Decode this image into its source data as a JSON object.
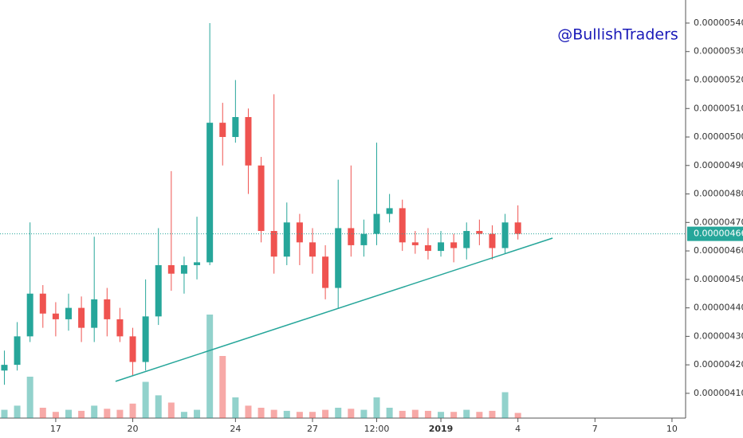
{
  "chart_data": {
    "type": "candlestick",
    "watermark": "@BullishTraders",
    "up_color": "#26a69a",
    "down_color": "#ef5350",
    "xlim": [
      14.83,
      41.53
    ],
    "xticks": [
      17,
      20,
      24,
      27,
      {
        "value": 29.5,
        "label": "12:00"
      },
      {
        "value": 32,
        "label": "2019"
      },
      {
        "value": 35,
        "label": "4"
      },
      {
        "value": 38,
        "label": "7"
      },
      {
        "value": 41,
        "label": "10"
      }
    ],
    "ylim": [
      4.013e-06,
      5.481e-06
    ],
    "yticks": [
      {
        "value": 4.1e-06,
        "label": "0.00000410"
      },
      {
        "value": 4.2e-06,
        "label": "0.00000420"
      },
      {
        "value": 4.3e-06,
        "label": "0.00000430"
      },
      {
        "value": 4.4e-06,
        "label": "0.00000440"
      },
      {
        "value": 4.5e-06,
        "label": "0.00000450"
      },
      {
        "value": 4.6e-06,
        "label": "0.00000460"
      },
      {
        "value": 4.7e-06,
        "label": "0.00000470"
      },
      {
        "value": 4.8e-06,
        "label": "0.00000480"
      },
      {
        "value": 4.9e-06,
        "label": "0.00000490"
      },
      {
        "value": 5e-06,
        "label": "0.00000500"
      },
      {
        "value": 5.1e-06,
        "label": "0.00000510"
      },
      {
        "value": 5.2e-06,
        "label": "0.00000520"
      },
      {
        "value": 5.3e-06,
        "label": "0.00000530"
      },
      {
        "value": 5.4e-06,
        "label": "0.00000540"
      }
    ],
    "last_price": {
      "value": 4.66e-06,
      "label": "0.00000466"
    },
    "trendline": {
      "x": [
        19.33,
        36.35
      ],
      "y": [
        4.142e-06,
        4.645e-06
      ]
    },
    "candles": {
      "x": [
        15,
        15.5,
        16,
        16.5,
        17,
        17.5,
        18,
        18.5,
        19,
        19.5,
        20,
        20.5,
        21,
        21.5,
        22,
        22.5,
        23,
        23.5,
        24,
        24.5,
        25,
        25.5,
        26,
        26.5,
        27,
        27.5,
        28,
        28.5,
        29,
        29.5,
        30,
        30.5,
        31,
        31.5,
        32,
        32.5,
        33,
        33.5,
        34,
        34.5,
        35
      ],
      "open": [
        4.18e-06,
        4.2e-06,
        4.3e-06,
        4.45e-06,
        4.38e-06,
        4.36e-06,
        4.4e-06,
        4.33e-06,
        4.43e-06,
        4.36e-06,
        4.3e-06,
        4.21e-06,
        4.37e-06,
        4.55e-06,
        4.52e-06,
        4.55e-06,
        4.56e-06,
        5.05e-06,
        5e-06,
        5.07e-06,
        4.9e-06,
        4.67e-06,
        4.58e-06,
        4.7e-06,
        4.63e-06,
        4.58e-06,
        4.47e-06,
        4.68e-06,
        4.62e-06,
        4.66e-06,
        4.73e-06,
        4.75e-06,
        4.63e-06,
        4.62e-06,
        4.6e-06,
        4.63e-06,
        4.61e-06,
        4.67e-06,
        4.66e-06,
        4.61e-06,
        4.7e-06
      ],
      "high": [
        4.25e-06,
        4.35e-06,
        4.7e-06,
        4.48e-06,
        4.42e-06,
        4.45e-06,
        4.44e-06,
        4.65e-06,
        4.47e-06,
        4.4e-06,
        4.33e-06,
        4.5e-06,
        4.68e-06,
        4.88e-06,
        4.58e-06,
        4.72e-06,
        5.4e-06,
        5.12e-06,
        5.2e-06,
        5.1e-06,
        4.93e-06,
        5.15e-06,
        4.77e-06,
        4.73e-06,
        4.68e-06,
        4.62e-06,
        4.85e-06,
        4.9e-06,
        4.71e-06,
        4.98e-06,
        4.8e-06,
        4.78e-06,
        4.67e-06,
        4.68e-06,
        4.67e-06,
        4.66e-06,
        4.7e-06,
        4.71e-06,
        4.69e-06,
        4.73e-06,
        4.76e-06
      ],
      "low": [
        4.13e-06,
        4.18e-06,
        4.28e-06,
        4.33e-06,
        4.3e-06,
        4.32e-06,
        4.28e-06,
        4.28e-06,
        4.3e-06,
        4.28e-06,
        4.16e-06,
        4.18e-06,
        4.34e-06,
        4.46e-06,
        4.45e-06,
        4.5e-06,
        4.55e-06,
        4.9e-06,
        4.98e-06,
        4.8e-06,
        4.63e-06,
        4.52e-06,
        4.55e-06,
        4.55e-06,
        4.52e-06,
        4.43e-06,
        4.4e-06,
        4.58e-06,
        4.58e-06,
        4.62e-06,
        4.7e-06,
        4.6e-06,
        4.59e-06,
        4.57e-06,
        4.58e-06,
        4.56e-06,
        4.57e-06,
        4.62e-06,
        4.57e-06,
        4.59e-06,
        4.64e-06
      ],
      "close": [
        4.2e-06,
        4.3e-06,
        4.45e-06,
        4.38e-06,
        4.36e-06,
        4.4e-06,
        4.33e-06,
        4.43e-06,
        4.36e-06,
        4.3e-06,
        4.21e-06,
        4.37e-06,
        4.55e-06,
        4.52e-06,
        4.55e-06,
        4.56e-06,
        5.05e-06,
        5e-06,
        5.07e-06,
        4.9e-06,
        4.67e-06,
        4.58e-06,
        4.7e-06,
        4.63e-06,
        4.58e-06,
        4.47e-06,
        4.68e-06,
        4.62e-06,
        4.66e-06,
        4.73e-06,
        4.75e-06,
        4.63e-06,
        4.62e-06,
        4.6e-06,
        4.63e-06,
        4.61e-06,
        4.67e-06,
        4.66e-06,
        4.61e-06,
        4.7e-06,
        4.66e-06
      ],
      "volume": [
        8,
        12,
        40,
        10,
        6,
        8,
        7,
        12,
        9,
        8,
        14,
        35,
        22,
        15,
        6,
        8,
        100,
        60,
        20,
        12,
        10,
        8,
        7,
        6,
        6,
        8,
        10,
        9,
        8,
        20,
        10,
        7,
        8,
        7,
        6,
        6,
        8,
        6,
        7,
        25,
        5
      ]
    }
  }
}
